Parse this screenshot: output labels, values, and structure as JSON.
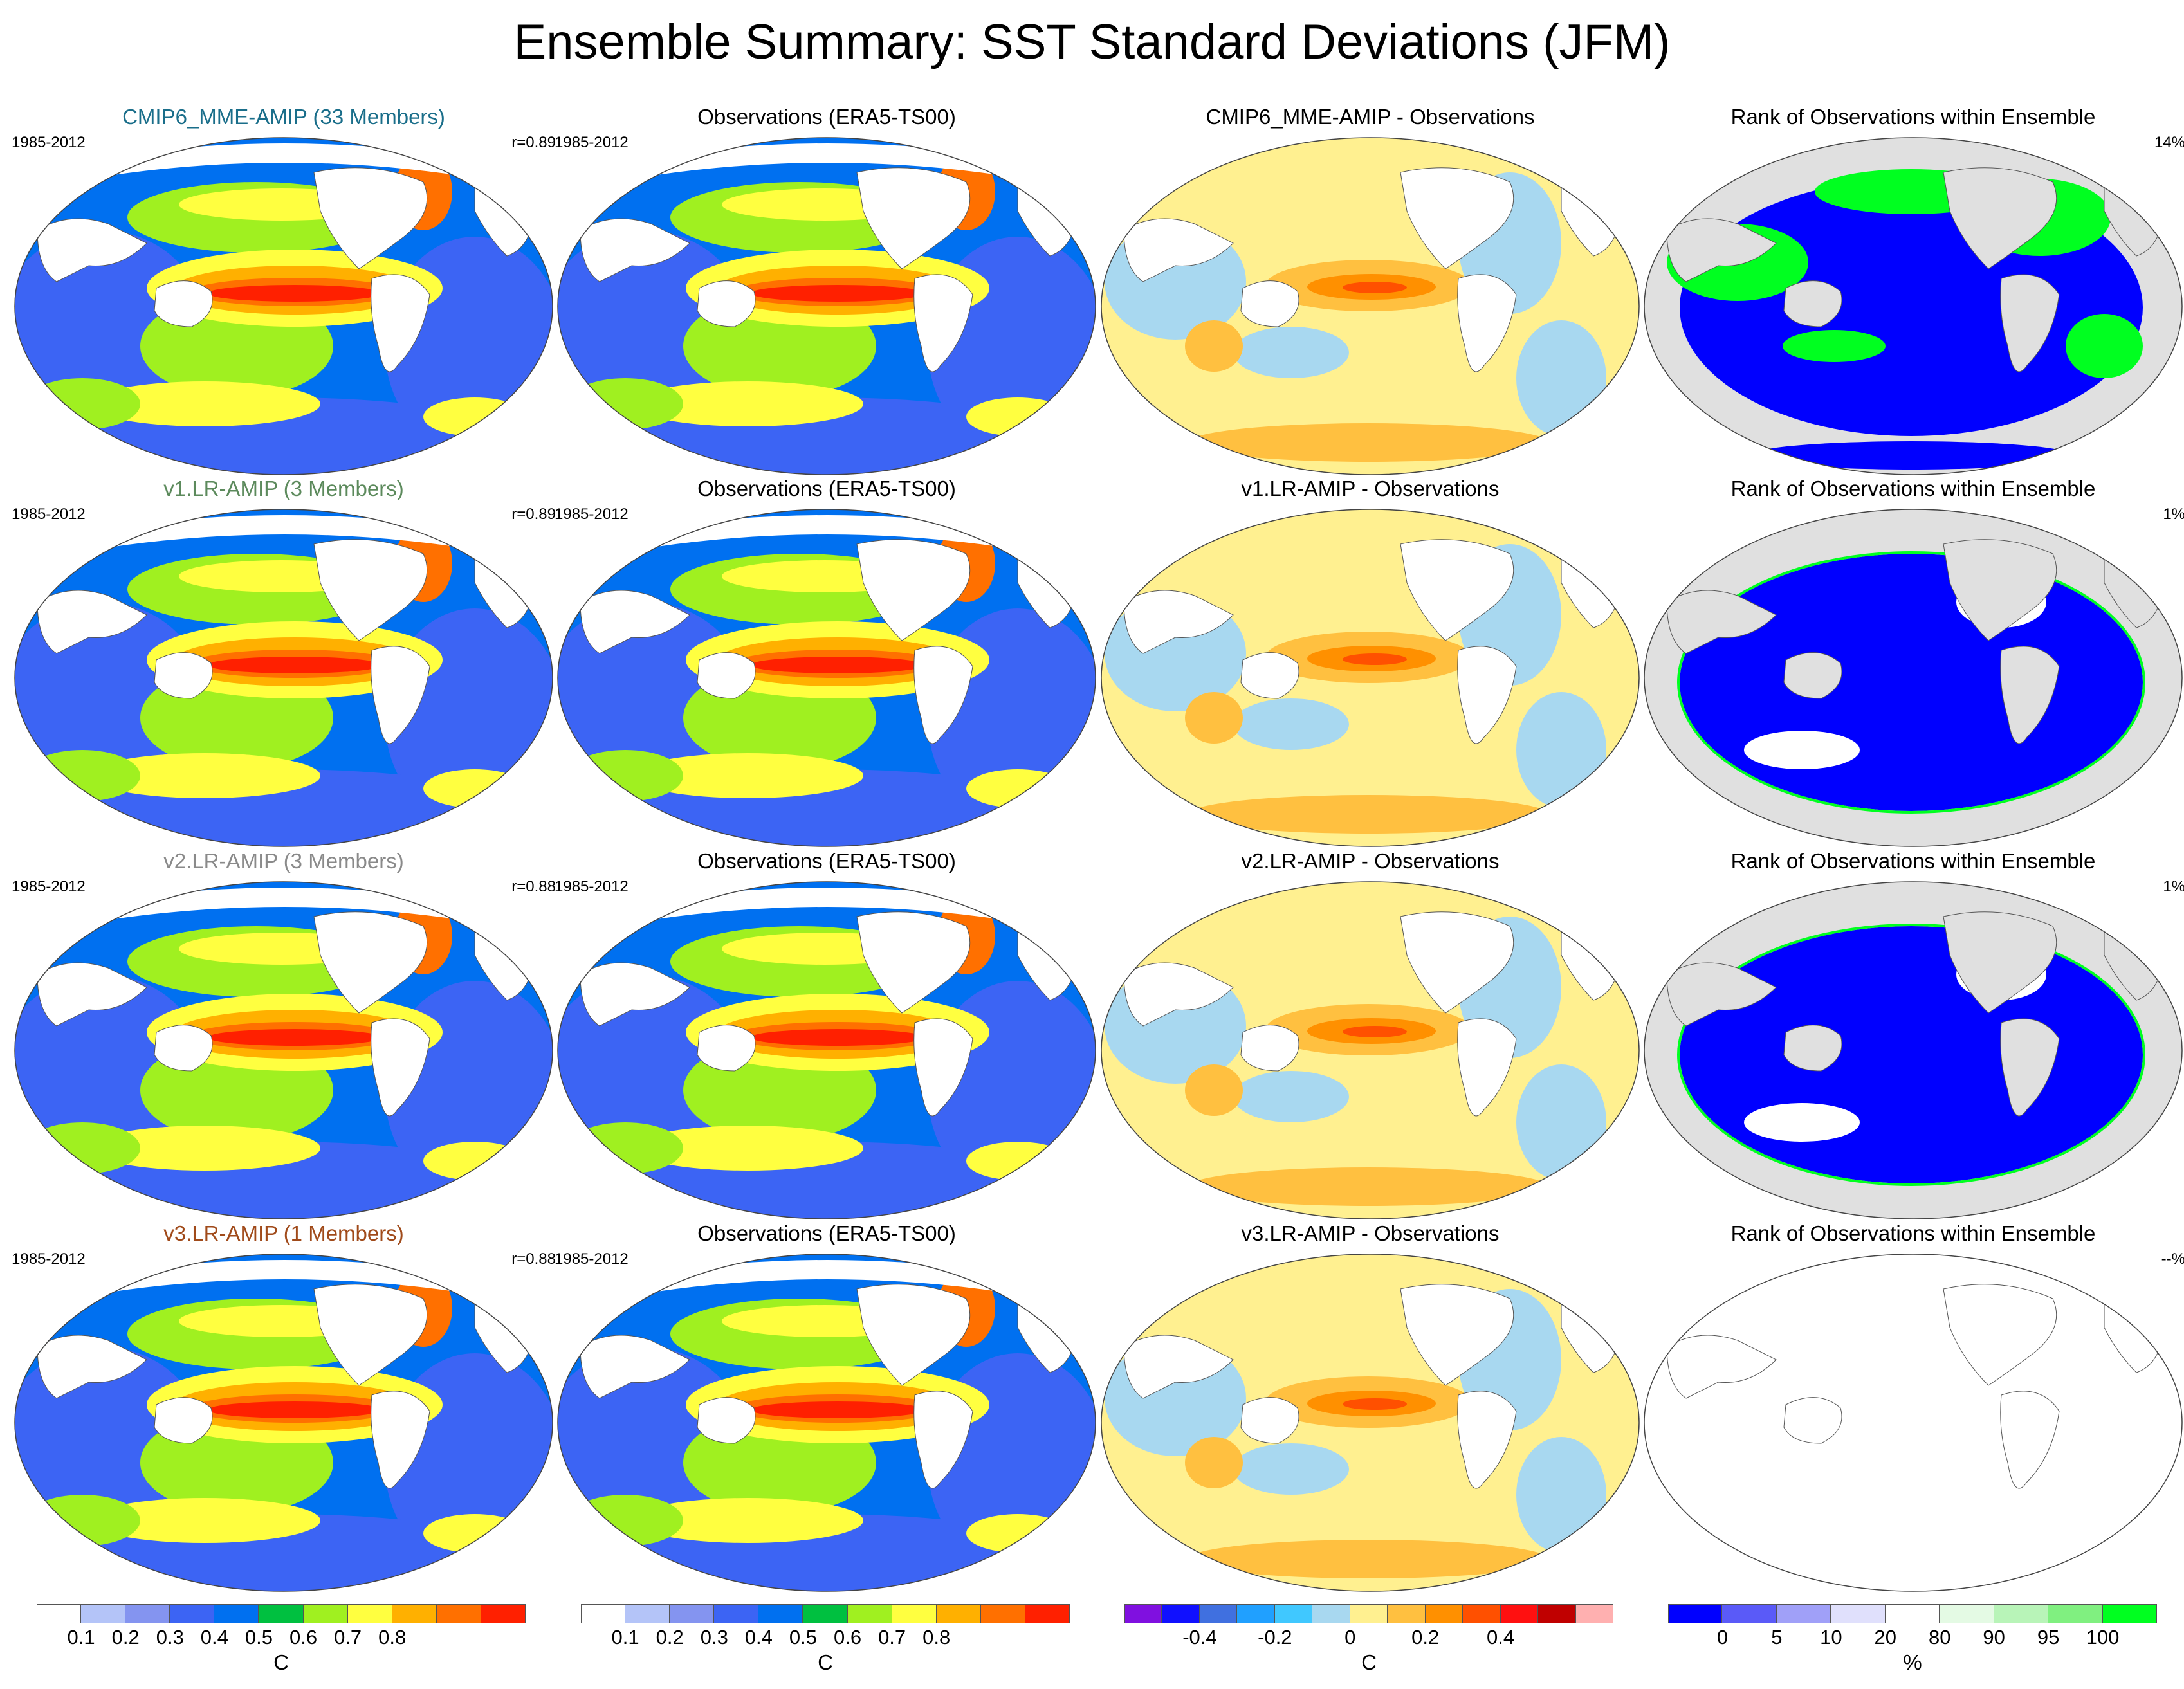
{
  "title": "Ensemble Summary: SST Standard Deviations (JFM)",
  "colors": {
    "sd_scale": [
      "#ffffff",
      "#b4c4f8",
      "#8494f0",
      "#3c64f4",
      "#0070f0",
      "#00c040",
      "#a0f020",
      "#ffff40",
      "#ffb000",
      "#ff7000",
      "#ff2000"
    ],
    "diff_scale": [
      "#8010e0",
      "#1010ff",
      "#4070e0",
      "#20a0ff",
      "#40c8ff",
      "#a8d8f0",
      "#fff090",
      "#ffc040",
      "#ff9000",
      "#ff5000",
      "#ff1010",
      "#c00000",
      "#ffb0b0"
    ],
    "rank_scale": [
      "#0000ff",
      "#5a5af8",
      "#a0a0f8",
      "#e0e0fc",
      "#ffffff",
      "#e4fae4",
      "#b8f4b8",
      "#80f080",
      "#00ff20"
    ],
    "land_gray": "#e0e0e0",
    "ensemble_title_colors": [
      "#1a6e8a",
      "#5c8a5c",
      "#8a8a8a",
      "#a04a1a"
    ]
  },
  "rows": [
    {
      "model": {
        "title": "CMIP6_MME-AMIP (33 Members)",
        "period": "1985-2012",
        "corr": "r=0.89"
      },
      "obs": {
        "title": "Observations (ERA5-TS00)",
        "period": "1985-2012"
      },
      "diff": {
        "title": "CMIP6_MME-AMIP - Observations"
      },
      "rank": {
        "title": "Rank of Observations within Ensemble",
        "pct": "14%"
      }
    },
    {
      "model": {
        "title": "v1.LR-AMIP (3 Members)",
        "period": "1985-2012",
        "corr": "r=0.89"
      },
      "obs": {
        "title": "Observations (ERA5-TS00)",
        "period": "1985-2012"
      },
      "diff": {
        "title": "v1.LR-AMIP - Observations"
      },
      "rank": {
        "title": "Rank of Observations within Ensemble",
        "pct": "1%"
      }
    },
    {
      "model": {
        "title": "v2.LR-AMIP (3 Members)",
        "period": "1985-2012",
        "corr": "r=0.88"
      },
      "obs": {
        "title": "Observations (ERA5-TS00)",
        "period": "1985-2012"
      },
      "diff": {
        "title": "v2.LR-AMIP - Observations"
      },
      "rank": {
        "title": "Rank of Observations within Ensemble",
        "pct": "1%"
      }
    },
    {
      "model": {
        "title": "v3.LR-AMIP (1 Members)",
        "period": "1985-2012",
        "corr": "r=0.88"
      },
      "obs": {
        "title": "Observations (ERA5-TS00)",
        "period": "1985-2012"
      },
      "diff": {
        "title": "v3.LR-AMIP - Observations"
      },
      "rank": {
        "title": "Rank of Observations within Ensemble",
        "pct": "--%"
      }
    }
  ],
  "colorbars": [
    {
      "unit": "C",
      "ticks": [
        "0.1",
        "0.2",
        "0.3",
        "0.4",
        "0.5",
        "0.6",
        "0.7",
        "0.8"
      ]
    },
    {
      "unit": "C",
      "ticks": [
        "0.1",
        "0.2",
        "0.3",
        "0.4",
        "0.5",
        "0.6",
        "0.7",
        "0.8"
      ]
    },
    {
      "unit": "C",
      "ticks": [
        "-0.4",
        "-0.2",
        "0",
        "0.2",
        "0.4"
      ]
    },
    {
      "unit": "%",
      "ticks": [
        "0",
        "5",
        "10",
        "20",
        "80",
        "90",
        "95",
        "100"
      ]
    }
  ]
}
